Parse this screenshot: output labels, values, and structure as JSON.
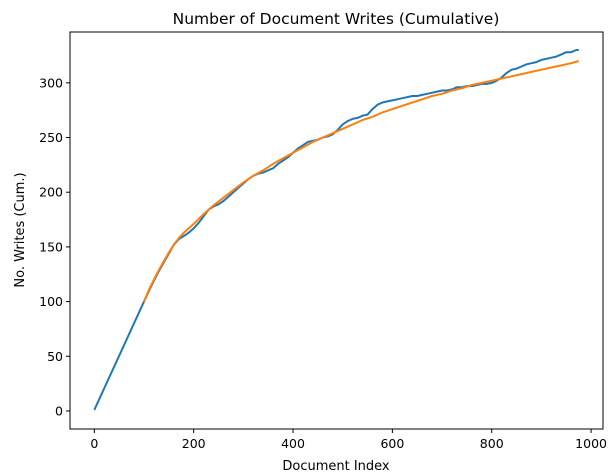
{
  "chart_data": {
    "type": "line",
    "title": "Number of Document Writes (Cumulative)",
    "xlabel": "Document Index",
    "ylabel": "No. Writes (Cum.)",
    "xlim": [
      -49,
      1024
    ],
    "ylim": [
      -16.5,
      346.5
    ],
    "xticks": [
      0,
      200,
      400,
      600,
      800,
      1000
    ],
    "yticks": [
      0,
      50,
      100,
      150,
      200,
      250,
      300
    ],
    "grid": false,
    "legend": "none",
    "series": [
      {
        "color": "#1f77b4",
        "x": [
          0,
          100,
          110,
          120,
          130,
          140,
          150,
          160,
          170,
          180,
          190,
          200,
          210,
          220,
          230,
          240,
          250,
          260,
          270,
          280,
          290,
          300,
          310,
          320,
          330,
          340,
          350,
          360,
          370,
          380,
          390,
          400,
          410,
          420,
          430,
          440,
          450,
          460,
          470,
          480,
          490,
          500,
          510,
          520,
          530,
          540,
          550,
          560,
          570,
          580,
          590,
          600,
          610,
          620,
          630,
          640,
          650,
          660,
          670,
          680,
          690,
          700,
          710,
          720,
          730,
          740,
          750,
          760,
          770,
          780,
          790,
          800,
          810,
          820,
          830,
          840,
          850,
          860,
          870,
          880,
          890,
          900,
          910,
          920,
          930,
          940,
          950,
          960,
          970,
          975
        ],
        "y": [
          1,
          100,
          110,
          119,
          128,
          136,
          144,
          152,
          157,
          160,
          163,
          167,
          172,
          178,
          184,
          187,
          189,
          192,
          196,
          200,
          204,
          208,
          212,
          215,
          217,
          218,
          220,
          222,
          226,
          229,
          232,
          236,
          240,
          243,
          246,
          247,
          248,
          250,
          251,
          253,
          257,
          262,
          265,
          267,
          268,
          270,
          271,
          276,
          280,
          282,
          283,
          284,
          285,
          286,
          287,
          288,
          288,
          289,
          290,
          291,
          292,
          293,
          293,
          294,
          296,
          296,
          297,
          297,
          298,
          299,
          299,
          300,
          302,
          305,
          309,
          312,
          313,
          315,
          317,
          318,
          319,
          321,
          322,
          323,
          324,
          326,
          328,
          328,
          330,
          330
        ]
      },
      {
        "color": "#ff7f0e",
        "x": [
          100,
          110,
          120,
          130,
          140,
          150,
          160,
          170,
          180,
          190,
          200,
          220,
          240,
          260,
          280,
          300,
          320,
          340,
          360,
          380,
          400,
          420,
          440,
          460,
          480,
          500,
          520,
          540,
          560,
          580,
          600,
          620,
          640,
          660,
          680,
          700,
          720,
          740,
          760,
          780,
          800,
          820,
          840,
          860,
          880,
          900,
          920,
          940,
          960,
          975
        ],
        "y": [
          100,
          111,
          120,
          129,
          137,
          145,
          152,
          158,
          163,
          167,
          171,
          180,
          188,
          195,
          202,
          209,
          215,
          220,
          226,
          231,
          236,
          241,
          246,
          250,
          254,
          258,
          262,
          266,
          269,
          273,
          276,
          279,
          282,
          285,
          288,
          290,
          293,
          295,
          298,
          300,
          302,
          304,
          306,
          308,
          310,
          312,
          314,
          316,
          318,
          320
        ]
      }
    ]
  }
}
